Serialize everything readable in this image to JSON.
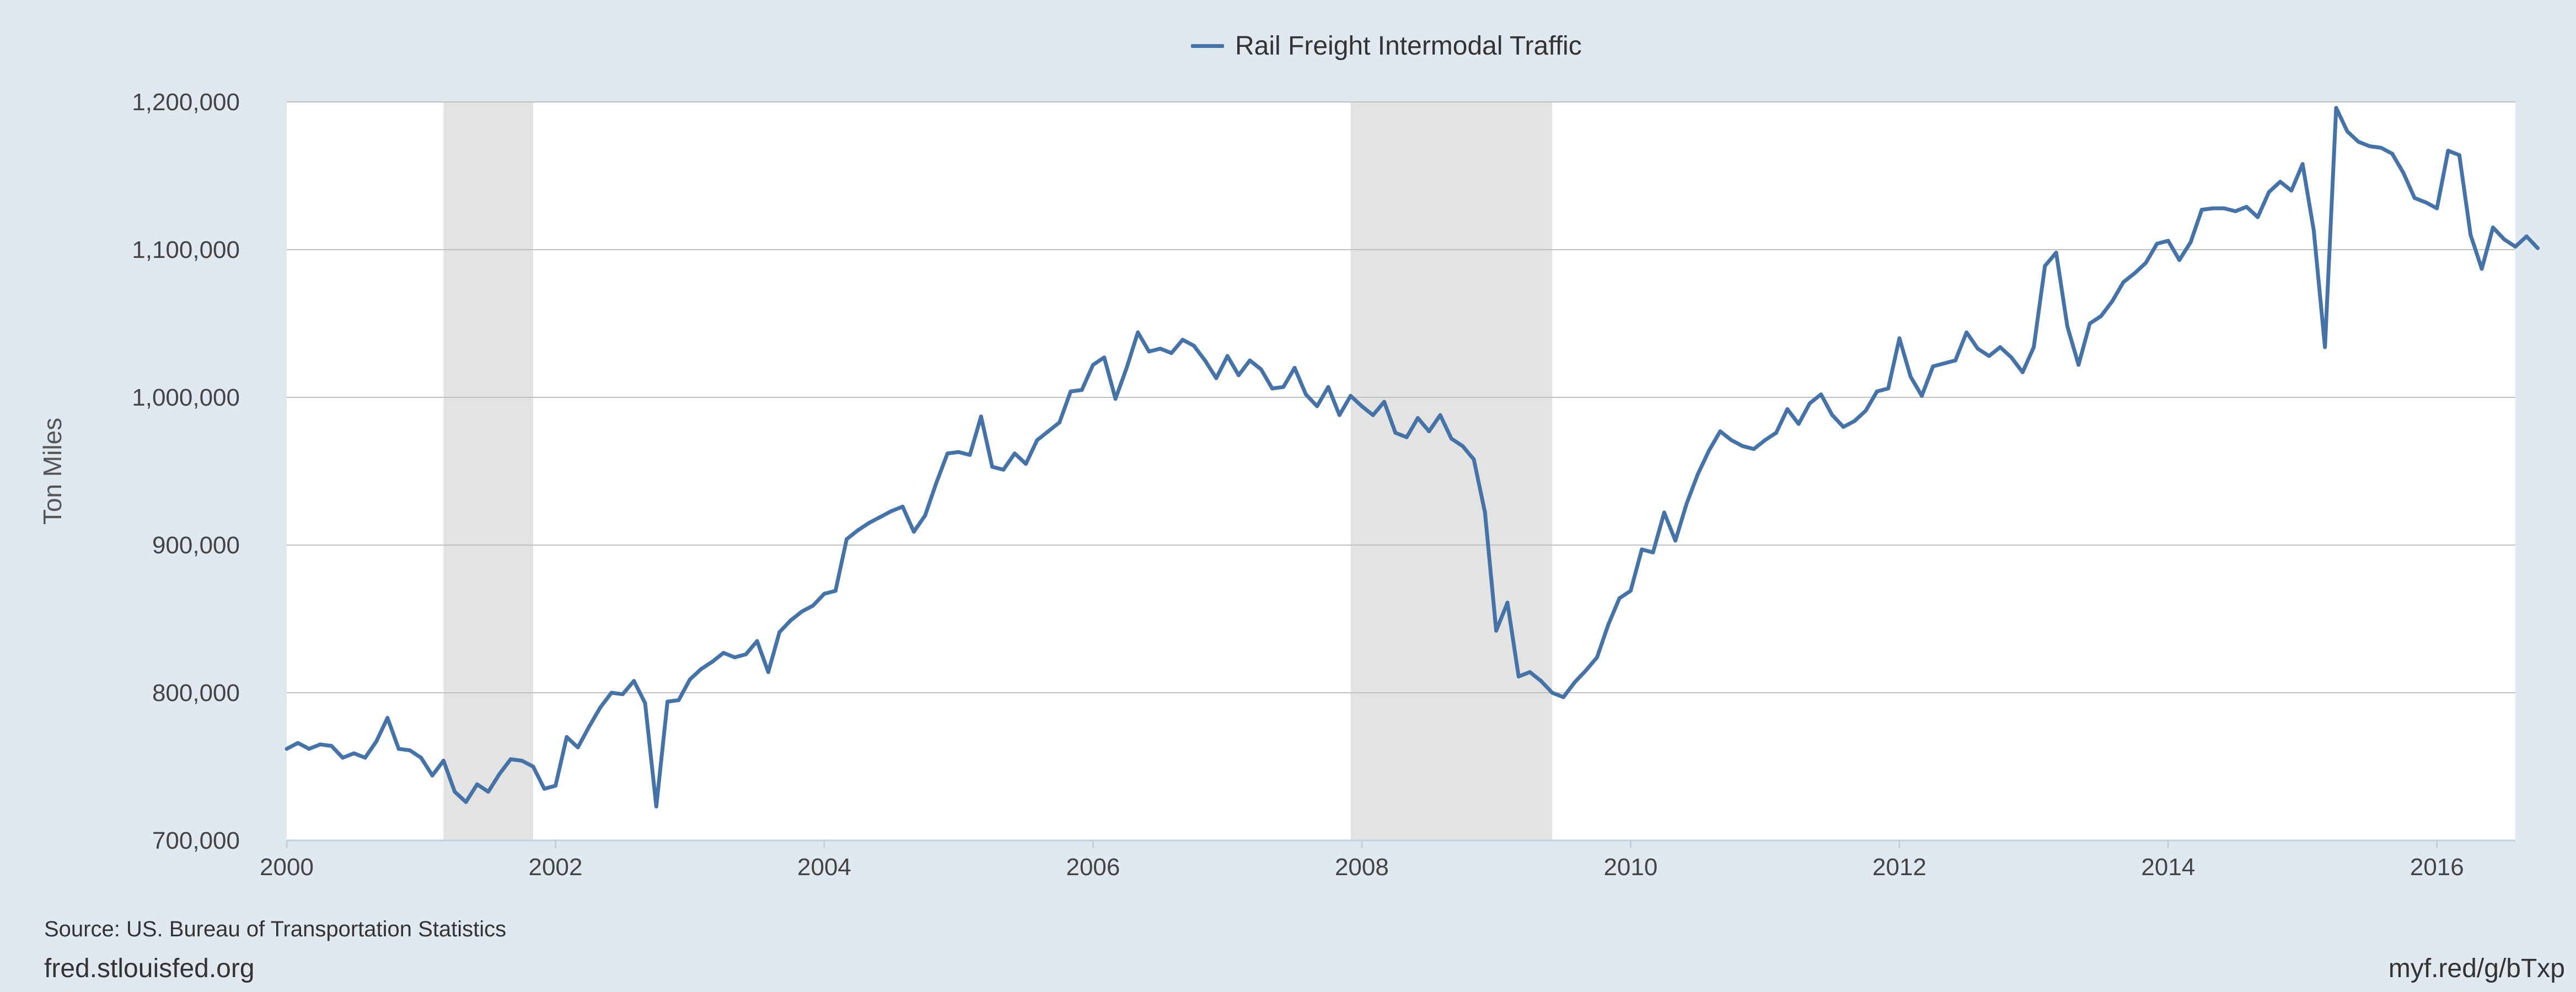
{
  "colors": {
    "background": "#e1e9f0",
    "plot_background": "#ffffff",
    "series_line": "#4572a7",
    "recession_shade": "#e3e3e3",
    "grid": "#c0c0c0"
  },
  "footer": {
    "source": "Source: US. Bureau of Transportation Statistics",
    "site": "fred.stlouisfed.org",
    "shortlink": "myf.red/g/bTxp"
  },
  "chart_data": {
    "type": "line",
    "title": "",
    "xlabel": "",
    "ylabel": "Ton Miles",
    "x_range": [
      "2000-01",
      "2016-08"
    ],
    "ylim": [
      700000,
      1200000
    ],
    "y_ticks": [
      700000,
      800000,
      900000,
      1000000,
      1100000,
      1200000
    ],
    "y_tick_labels": [
      "700,000",
      "800,000",
      "900,000",
      "1,000,000",
      "1,100,000",
      "1,200,000"
    ],
    "x_ticks": [
      "2000-01",
      "2002-01",
      "2004-01",
      "2006-01",
      "2008-01",
      "2010-01",
      "2012-01",
      "2014-01",
      "2016-01"
    ],
    "x_tick_labels": [
      "2000",
      "2002",
      "2004",
      "2006",
      "2008",
      "2010",
      "2012",
      "2014",
      "2016"
    ],
    "grid": "horizontal",
    "legend": "top-center",
    "recessions": [
      {
        "start": "2001-03",
        "end": "2001-11"
      },
      {
        "start": "2007-12",
        "end": "2009-06"
      }
    ],
    "series": [
      {
        "name": "Rail Freight Intermodal Traffic",
        "start": "2000-01",
        "frequency": "monthly",
        "values": [
          762000,
          766000,
          762000,
          765000,
          764000,
          756000,
          759000,
          756000,
          767000,
          783000,
          762000,
          761000,
          756000,
          744000,
          754000,
          733000,
          726000,
          738000,
          733000,
          745000,
          755000,
          754000,
          750000,
          735000,
          737000,
          770000,
          763000,
          777000,
          790000,
          800000,
          799000,
          808000,
          793000,
          723000,
          794000,
          795000,
          809000,
          816000,
          821000,
          827000,
          824000,
          826000,
          835000,
          814000,
          841000,
          849000,
          855000,
          859000,
          867000,
          869000,
          904000,
          910000,
          915000,
          919000,
          923000,
          926000,
          909000,
          920000,
          942000,
          962000,
          963000,
          961000,
          987000,
          953000,
          951000,
          962000,
          955000,
          971000,
          977000,
          983000,
          1004000,
          1005000,
          1022000,
          1027000,
          999000,
          1020000,
          1044000,
          1031000,
          1033000,
          1030000,
          1039000,
          1035000,
          1025000,
          1013000,
          1028000,
          1015000,
          1025000,
          1019000,
          1006000,
          1007000,
          1020000,
          1002000,
          994000,
          1007000,
          988000,
          1001000,
          994000,
          988000,
          997000,
          976000,
          973000,
          986000,
          977000,
          988000,
          972000,
          967000,
          958000,
          922000,
          842000,
          861000,
          811000,
          814000,
          808000,
          800000,
          797000,
          807000,
          815000,
          824000,
          846000,
          864000,
          869000,
          897000,
          895000,
          922000,
          903000,
          928000,
          948000,
          964000,
          977000,
          971000,
          967000,
          965000,
          971000,
          976000,
          992000,
          982000,
          996000,
          1002000,
          988000,
          980000,
          984000,
          991000,
          1004000,
          1006000,
          1040000,
          1014000,
          1001000,
          1021000,
          1023000,
          1025000,
          1044000,
          1033000,
          1028000,
          1034000,
          1027000,
          1017000,
          1034000,
          1089000,
          1098000,
          1048000,
          1022000,
          1050000,
          1055000,
          1065000,
          1078000,
          1084000,
          1091000,
          1104000,
          1106000,
          1093000,
          1105000,
          1127000,
          1128000,
          1128000,
          1126000,
          1129000,
          1122000,
          1139000,
          1146000,
          1140000,
          1158000,
          1113000,
          1034000,
          1196000,
          1180000,
          1173000,
          1170000,
          1169000,
          1165000,
          1152000,
          1135000,
          1132000,
          1128000,
          1167000,
          1164000,
          1110000,
          1087000,
          1115000,
          1107000,
          1102000,
          1109000,
          1101000
        ]
      }
    ]
  }
}
